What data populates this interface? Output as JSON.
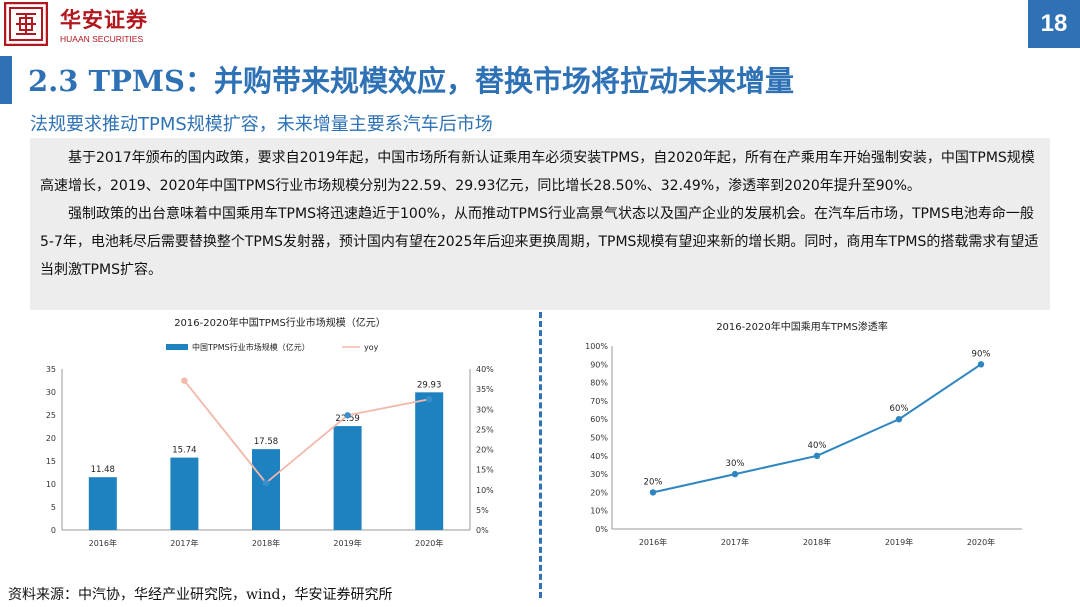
{
  "header": {
    "logo_cn": "华安证券",
    "logo_en": "HUAAN SECURITIES",
    "page_number": "18"
  },
  "title": "2.3 TPMS：并购带来规模效应，替换市场将拉动未来增量",
  "subtitle": "法规要求推动TPMS规模扩容，未来增量主要系汽车后市场",
  "paragraphs": [
    "基于2017年颁布的国内政策，要求自2019年起，中国市场所有新认证乘用车必须安装TPMS，自2020年起，所有在产乘用车开始强制安装，中国TPMS规模高速增长，2019、2020年中国TPMS行业市场规模分别为22.59、29.93亿元，同比增长28.50%、32.49%，渗透率到2020年提升至90%。",
    "强制政策的出台意味着中国乘用车TPMS将迅速趋近于100%，从而推动TPMS行业高景气状态以及国产企业的发展机会。在汽车后市场，TPMS电池寿命一般5-7年，电池耗尽后需要替换整个TPMS发射器，预计国内有望在2025年后迎来更换周期，TPMS规模有望迎来新的增长期。同时，商用车TPMS的搭载需求有望适当刺激TPMS扩容。"
  ],
  "footer": "资料来源：中汽协，华经产业研究院，wind，华安证券研究所",
  "colors": {
    "accent": "#2e72b5",
    "bar": "#1f82c0",
    "yoy": "#f2b8aa",
    "yoy_dot": "#3a8fcb",
    "line": "#2e86c1",
    "brand_red": "#b2171e"
  },
  "chart_data": [
    {
      "type": "bar",
      "title": "2016-2020年中国TPMS行业市场规模（亿元）",
      "categories": [
        "2016年",
        "2017年",
        "2018年",
        "2019年",
        "2020年"
      ],
      "series": [
        {
          "name": "中国TPMS行业市场规模（亿元）",
          "values": [
            11.48,
            15.74,
            17.58,
            22.59,
            29.93
          ],
          "labels": [
            "11.48",
            "15.74",
            "17.58",
            "22.59",
            "29.93"
          ]
        },
        {
          "name": "yoy",
          "type": "line",
          "axis": "right",
          "values": [
            null,
            37.1,
            11.7,
            28.5,
            32.49
          ]
        }
      ],
      "ylim": [
        0,
        35
      ],
      "yticks": [
        "0",
        "5",
        "10",
        "15",
        "20",
        "25",
        "30",
        "35"
      ],
      "y2lim": [
        0,
        40
      ],
      "y2ticks": [
        "0%",
        "5%",
        "10%",
        "15%",
        "20%",
        "25%",
        "30%",
        "35%",
        "40%"
      ],
      "legend": "top"
    },
    {
      "type": "line",
      "title": "2016-2020年中国乘用车TPMS渗透率",
      "categories": [
        "2016年",
        "2017年",
        "2018年",
        "2019年",
        "2020年"
      ],
      "values": [
        20,
        30,
        40,
        60,
        90
      ],
      "labels": [
        "20%",
        "30%",
        "40%",
        "60%",
        "90%"
      ],
      "ylim": [
        0,
        100
      ],
      "yticks": [
        "0%",
        "10%",
        "20%",
        "30%",
        "40%",
        "50%",
        "60%",
        "70%",
        "80%",
        "90%",
        "100%"
      ]
    }
  ]
}
